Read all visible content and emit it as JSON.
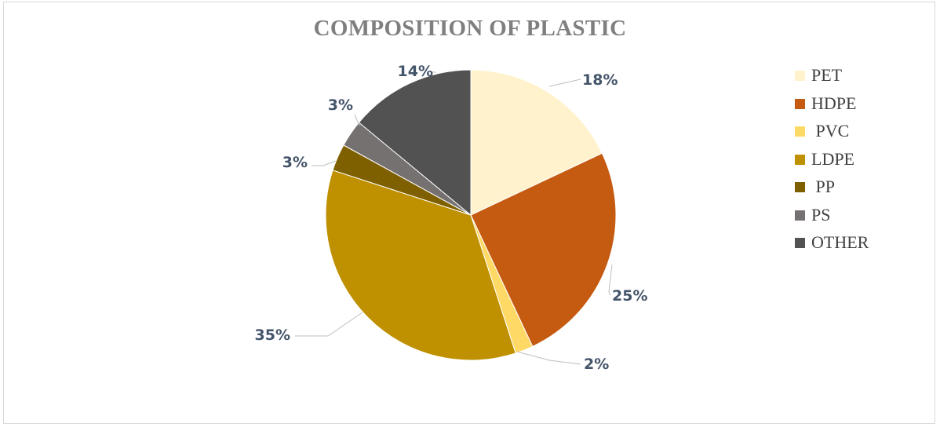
{
  "chart_data": {
    "type": "pie",
    "title": "COMPOSITION OF PLASTIC",
    "categories": [
      "PET",
      "HDPE",
      " PVC",
      "LDPE",
      " PP",
      "PS",
      "OTHER"
    ],
    "values": [
      18,
      25,
      2,
      35,
      3,
      3,
      14
    ],
    "data_labels": [
      "18%",
      "25%",
      "2%",
      "35%",
      "3%",
      "3%",
      "14%"
    ],
    "colors": [
      "#fff2cc",
      "#c55a11",
      "#ffd966",
      "#bf9000",
      "#7f6000",
      "#767171",
      "#525252"
    ],
    "legend_position": "right"
  }
}
